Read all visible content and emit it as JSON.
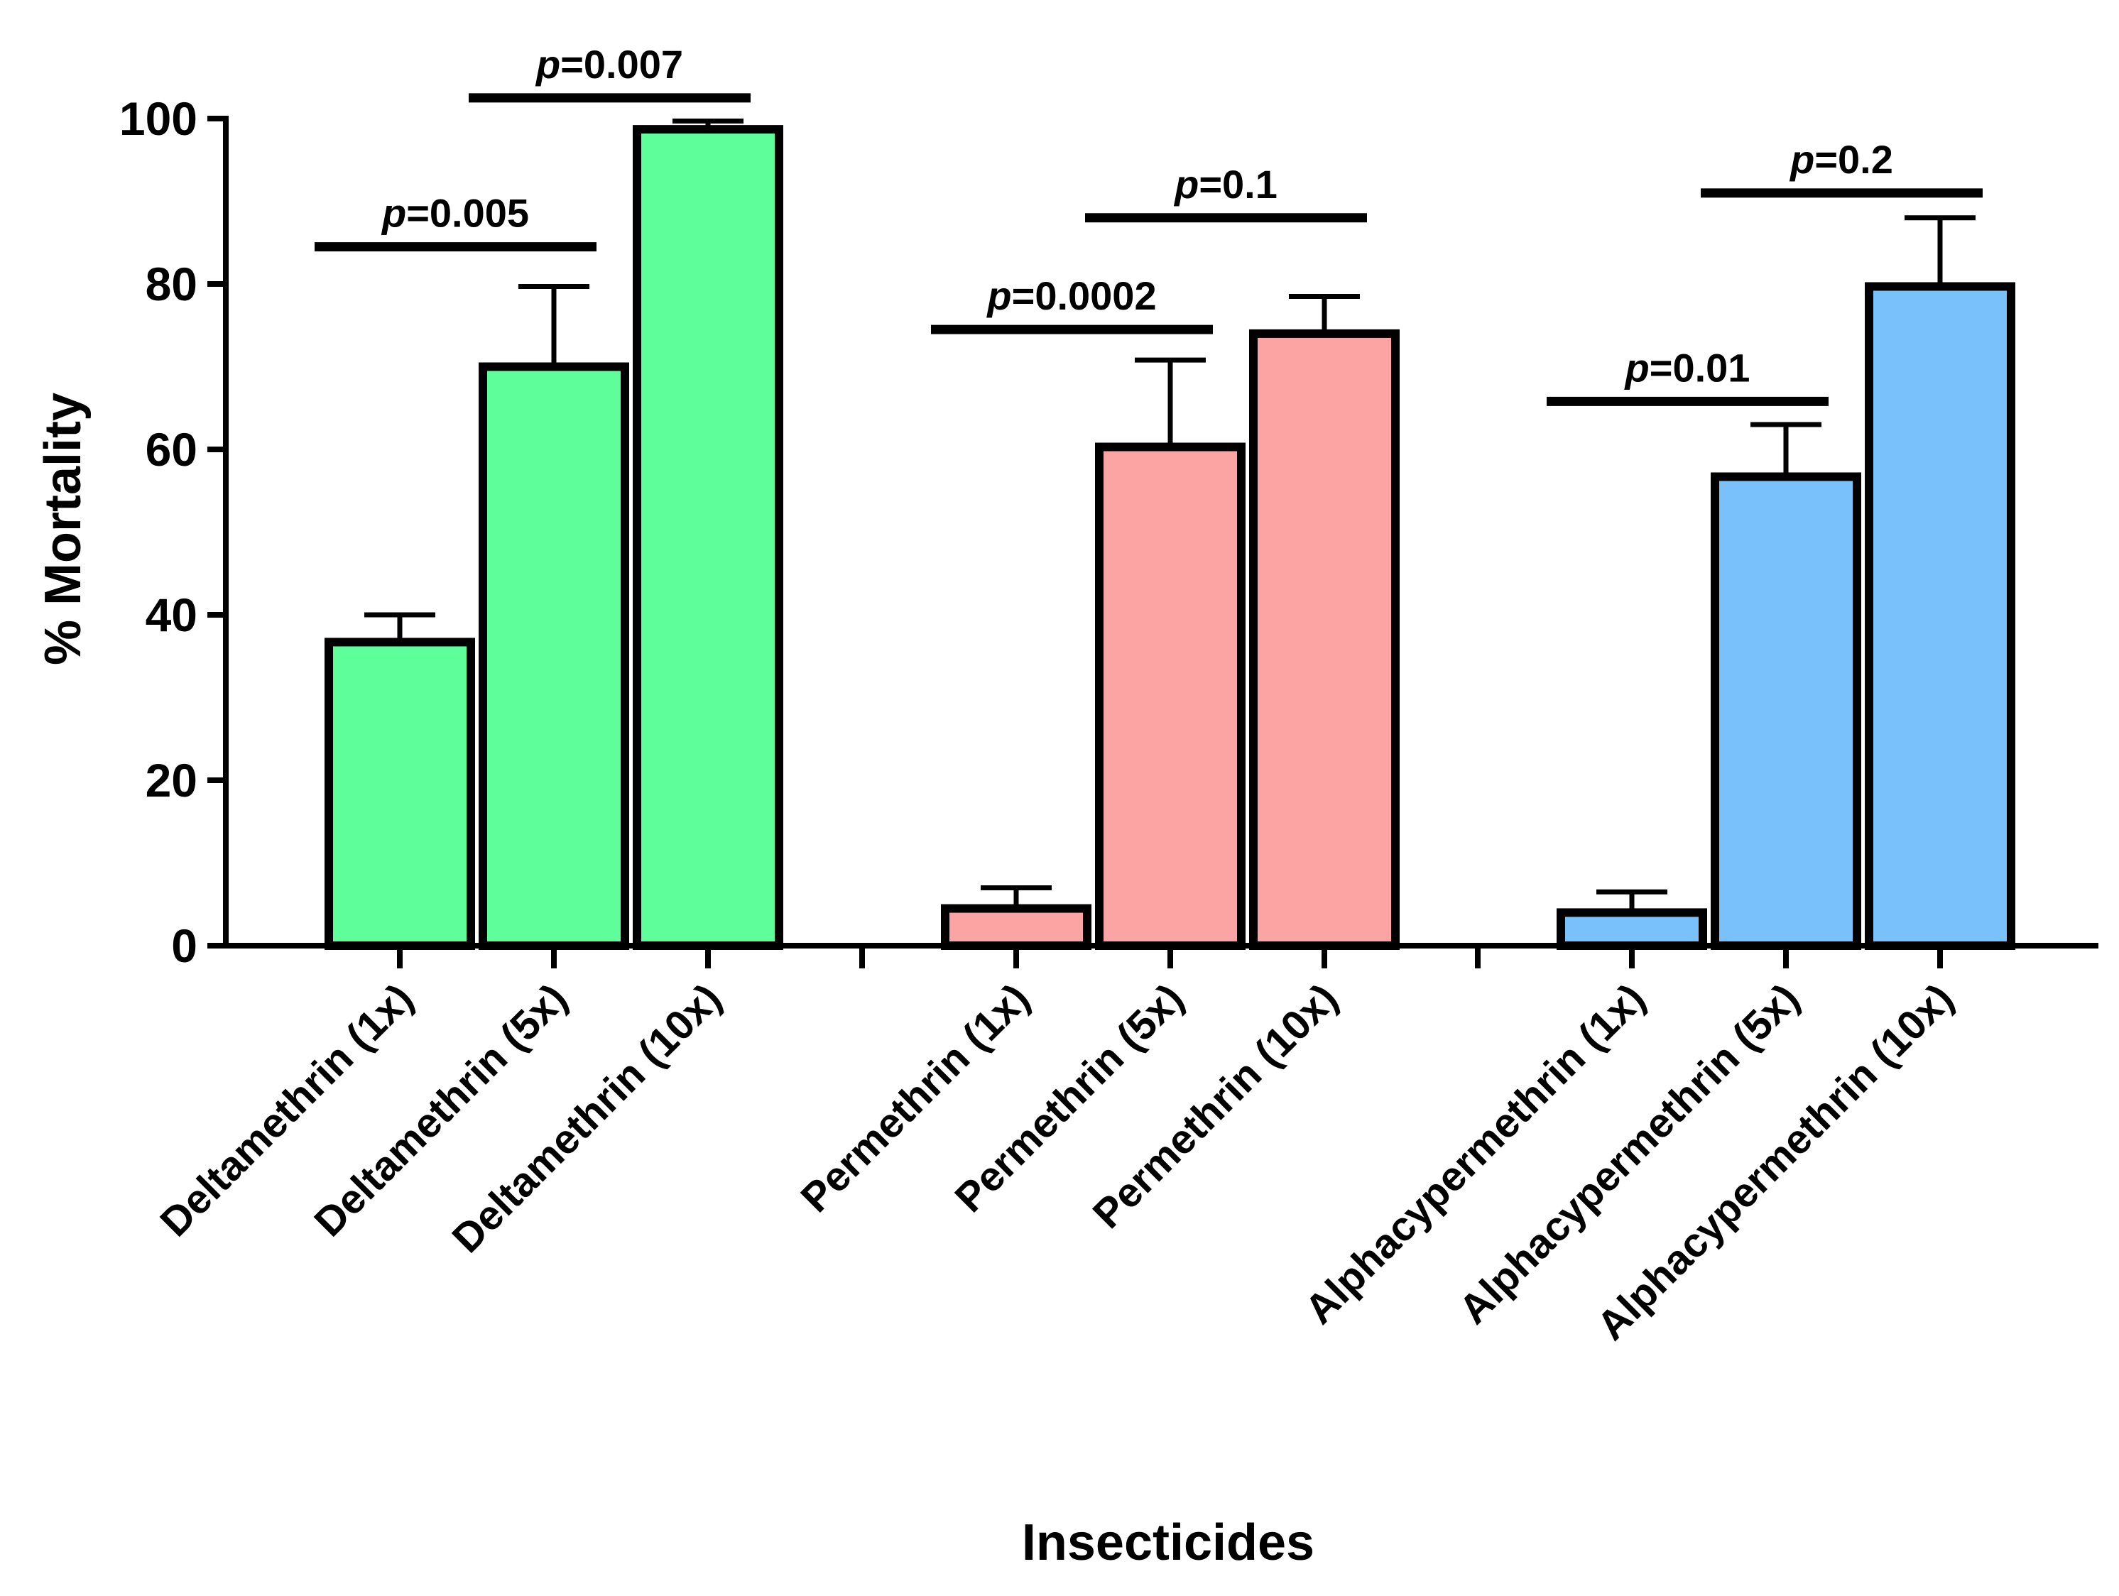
{
  "chart_data": {
    "type": "bar",
    "title": "",
    "xlabel": "Insecticides",
    "ylabel": "% Mortality",
    "ylim": [
      0,
      100
    ],
    "yticks": [
      0,
      20,
      40,
      60,
      80,
      100
    ],
    "grid": false,
    "groups": [
      {
        "name": "Deltamethrin",
        "color": "#5EFF9A",
        "bars": [
          {
            "label": "Deltamethrin (1x)",
            "value": 36.7,
            "error": 3.3
          },
          {
            "label": "Deltamethrin (5x)",
            "value": 70.0,
            "error": 9.7
          },
          {
            "label": "Deltamethrin (10x)",
            "value": 98.7,
            "error": 1.0
          }
        ]
      },
      {
        "name": "Permethrin",
        "color": "#FCA3A3",
        "bars": [
          {
            "label": "Permethrin (1x)",
            "value": 4.5,
            "error": 2.5
          },
          {
            "label": "Permethrin (5x)",
            "value": 60.3,
            "error": 10.5
          },
          {
            "label": "Permethrin (10x)",
            "value": 74.0,
            "error": 4.5
          }
        ]
      },
      {
        "name": "Alphacypermethrin",
        "color": "#79C1FA",
        "bars": [
          {
            "label": "Alphacypermethrin (1x)",
            "value": 4.0,
            "error": 2.5
          },
          {
            "label": "Alphacypermethrin (5x)",
            "value": 56.7,
            "error": 6.3
          },
          {
            "label": "Alphacypermethrin (10x)",
            "value": 79.7,
            "error": 8.3
          }
        ]
      }
    ],
    "comparisons": [
      {
        "group": 0,
        "from": 0,
        "to": 1,
        "level": 84.5,
        "p_italic": "p",
        "p_rest": "=0.005"
      },
      {
        "group": 0,
        "from": 1,
        "to": 2,
        "level": 102.5,
        "p_italic": "p",
        "p_rest": "=0.007"
      },
      {
        "group": 1,
        "from": 0,
        "to": 1,
        "level": 74.5,
        "p_italic": "p",
        "p_rest": "=0.0002"
      },
      {
        "group": 1,
        "from": 1,
        "to": 2,
        "level": 88.0,
        "p_italic": "p",
        "p_rest": "=0.1"
      },
      {
        "group": 2,
        "from": 0,
        "to": 1,
        "level": 65.8,
        "p_italic": "p",
        "p_rest": "=0.01"
      },
      {
        "group": 2,
        "from": 1,
        "to": 2,
        "level": 91.0,
        "p_italic": "p",
        "p_rest": "=0.2"
      }
    ]
  }
}
